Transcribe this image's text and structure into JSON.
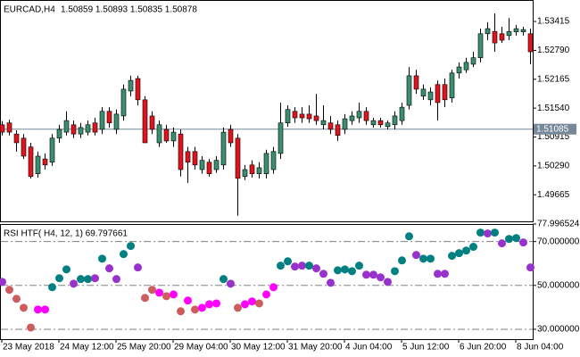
{
  "chart_data": [
    {
      "type": "candlestick",
      "title": "EURCAD,H4",
      "subtitle": "1.50859 1.50893 1.50835 1.50878",
      "categories": [
        "23 May 2018",
        null,
        null,
        null,
        null,
        null,
        null,
        null,
        "24 May 12:00",
        null,
        null,
        null,
        null,
        null,
        null,
        null,
        "25 May 20:00",
        null,
        null,
        null,
        null,
        null,
        null,
        null,
        "29 May 04:00",
        null,
        null,
        null,
        null,
        null,
        null,
        null,
        "30 May 12:00",
        null,
        null,
        null,
        null,
        null,
        null,
        null,
        "31 May 20:00",
        null,
        null,
        null,
        null,
        null,
        null,
        null,
        "4 Jun 04:00",
        null,
        null,
        null,
        null,
        null,
        null,
        null,
        "5 Jun 12:00",
        null,
        null,
        null,
        null,
        null,
        null,
        null,
        "6 Jun 20:00",
        null,
        null,
        null,
        null,
        null,
        null,
        null,
        "8 Jun 04:00",
        null,
        null
      ],
      "open": [
        1.5118,
        1.5122,
        1.5098,
        1.5089,
        1.507,
        1.5012,
        1.5044,
        1.5037,
        1.5089,
        1.5102,
        1.5118,
        1.5098,
        1.5102,
        1.5122,
        1.5108,
        1.5147,
        1.5108,
        1.5137,
        1.5191,
        1.5218,
        1.5172,
        1.5137,
        1.5079,
        1.5108,
        1.5083,
        1.5098,
        1.506,
        1.506,
        1.5021,
        1.5037,
        1.5021,
        1.5031,
        1.5108,
        1.5089,
        1.5006,
        1.5031,
        1.5012,
        1.5012,
        1.5021,
        1.5056,
        1.5122,
        1.5147,
        1.5141,
        1.5141,
        1.5137,
        1.5118,
        1.5122,
        1.5118,
        1.5108,
        1.5127,
        1.5133,
        1.5147,
        1.5118,
        1.5127,
        1.5114,
        1.5118,
        1.5127,
        1.516,
        1.5224,
        1.518,
        1.5172,
        1.5205,
        1.5205,
        1.5176,
        1.523,
        1.5237,
        1.5249,
        1.5263,
        1.5315,
        1.532,
        1.5315,
        1.5311,
        1.5319,
        1.5319,
        1.5315
      ],
      "high": [
        1.5126,
        1.5129,
        1.5106,
        1.5098,
        1.5079,
        1.506,
        1.5056,
        1.5098,
        1.5118,
        1.5147,
        1.5127,
        1.5122,
        1.5127,
        1.5133,
        1.5156,
        1.5156,
        1.5151,
        1.5205,
        1.5224,
        1.5224,
        1.518,
        1.5147,
        1.5127,
        1.5118,
        1.5112,
        1.5108,
        1.507,
        1.507,
        1.505,
        1.5044,
        1.505,
        1.5112,
        1.5118,
        1.5098,
        1.5031,
        1.5041,
        1.5037,
        1.5064,
        1.507,
        1.5166,
        1.516,
        1.5156,
        1.5156,
        1.516,
        1.5185,
        1.516,
        1.5137,
        1.5127,
        1.5141,
        1.5147,
        1.5166,
        1.5156,
        1.5133,
        1.5133,
        1.5127,
        1.5147,
        1.5166,
        1.5243,
        1.5237,
        1.5205,
        1.5199,
        1.5214,
        1.5218,
        1.5237,
        1.5253,
        1.5263,
        1.5276,
        1.5326,
        1.534,
        1.5359,
        1.533,
        1.5349,
        1.5334,
        1.533,
        1.5326
      ],
      "low": [
        1.5095,
        1.5095,
        1.506,
        1.5044,
        1.5002,
        1.5004,
        1.5021,
        1.5029,
        1.5079,
        1.5095,
        1.5089,
        1.5089,
        1.5095,
        1.5095,
        1.5098,
        1.5112,
        1.5098,
        1.5127,
        1.518,
        1.516,
        1.5079,
        1.5098,
        1.507,
        1.5079,
        1.507,
        1.5006,
        1.4992,
        1.5021,
        1.5012,
        1.5006,
        1.5014,
        1.5021,
        1.507,
        1.4921,
        1.4998,
        1.5004,
        1.5002,
        1.5002,
        1.5012,
        1.5044,
        1.5114,
        1.5122,
        1.5122,
        1.5122,
        1.5118,
        1.5108,
        1.5098,
        1.5083,
        1.5098,
        1.5118,
        1.5122,
        1.5118,
        1.5112,
        1.5112,
        1.5108,
        1.5108,
        1.5118,
        1.5151,
        1.5185,
        1.5172,
        1.516,
        1.5127,
        1.5156,
        1.5166,
        1.5218,
        1.523,
        1.5243,
        1.5253,
        1.5301,
        1.5276,
        1.5295,
        1.5301,
        1.5311,
        1.5311,
        1.5249
      ],
      "close": [
        1.5102,
        1.5102,
        1.5079,
        1.505,
        1.5006,
        1.505,
        1.5031,
        1.5089,
        1.5108,
        1.5127,
        1.5098,
        1.5112,
        1.5118,
        1.5102,
        1.5147,
        1.5122,
        1.5141,
        1.5195,
        1.5214,
        1.5172,
        1.5079,
        1.5108,
        1.5118,
        1.5083,
        1.5102,
        1.5021,
        1.5037,
        1.5031,
        1.5041,
        1.5012,
        1.5041,
        1.5102,
        1.5079,
        1.5002,
        1.5021,
        1.5012,
        1.5025,
        1.5056,
        1.506,
        1.5122,
        1.5151,
        1.5133,
        1.5133,
        1.5131,
        1.5127,
        1.5127,
        1.5108,
        1.5095,
        1.5131,
        1.5137,
        1.5147,
        1.5127,
        1.5127,
        1.5118,
        1.5122,
        1.5137,
        1.5156,
        1.5224,
        1.5195,
        1.5195,
        1.5189,
        1.5166,
        1.5172,
        1.523,
        1.5243,
        1.5253,
        1.5263,
        1.5315,
        1.5326,
        1.5295,
        1.5301,
        1.532,
        1.5326,
        1.5324,
        1.5276
      ],
      "up_color": "#3b8f6e",
      "down_color": "#e0141e",
      "wick_color": "#000000",
      "ylim": [
        1.4909,
        1.5388
      ],
      "yticks": [
        1.53415,
        {
          "value": 1.5279,
          "label": "1.52790"
        },
        1.52165,
        {
          "value": 1.5154,
          "label": "1.51540"
        },
        1.50915,
        {
          "value": 1.5029,
          "label": "1.50290"
        },
        1.49665
      ],
      "price_line": 1.51085,
      "price_line_color": "#778899"
    },
    {
      "type": "dot",
      "title": "RSI HTF( H4, 12, 1) 69.797661",
      "values": [
        51.6,
        48.0,
        43.9,
        39.8,
        30.8,
        39.0,
        39.0,
        49.2,
        53.3,
        57.3,
        50.8,
        52.9,
        52.9,
        53.3,
        62.2,
        57.8,
        52.9,
        64.3,
        68.0,
        58.2,
        44.3,
        48.0,
        46.7,
        45.1,
        45.9,
        38.2,
        43.1,
        39.0,
        39.8,
        41.4,
        41.8,
        52.9,
        50.8,
        39.8,
        41.4,
        42.7,
        41.8,
        45.9,
        49.2,
        59.0,
        61.0,
        58.6,
        59.0,
        59.0,
        57.8,
        55.3,
        51.2,
        56.9,
        57.3,
        56.5,
        59.0,
        54.9,
        54.9,
        53.7,
        51.6,
        56.5,
        61.4,
        72.4,
        63.9,
        62.2,
        62.2,
        55.3,
        55.3,
        63.5,
        64.7,
        65.9,
        67.6,
        74.1,
        73.7,
        74.1,
        69.2,
        71.2,
        71.6,
        69.6,
        58.2
      ],
      "colors": [
        "#9932cc",
        "#cd5c5c",
        "#cd5c5c",
        "#cd5c5c",
        "#cd5c5c",
        "#ff00ff",
        "#ff00ff",
        "#008080",
        "#008080",
        "#008080",
        "#9932cc",
        "#008080",
        "#008080",
        "#9932cc",
        "#008080",
        "#9932cc",
        "#9932cc",
        "#008080",
        "#008080",
        "#9932cc",
        "#cd5c5c",
        "#cd5c5c",
        "#ff00ff",
        "#cd5c5c",
        "#ff00ff",
        "#cd5c5c",
        "#ff00ff",
        "#cd5c5c",
        "#ff00ff",
        "#ff00ff",
        "#ff00ff",
        "#008080",
        "#9932cc",
        "#cd5c5c",
        "#ff00ff",
        "#ff00ff",
        "#cd5c5c",
        "#ff00ff",
        "#ff00ff",
        "#008080",
        "#008080",
        "#9932cc",
        "#9932cc",
        "#008080",
        "#9932cc",
        "#9932cc",
        "#9932cc",
        "#008080",
        "#008080",
        "#008080",
        "#008080",
        "#9932cc",
        "#9932cc",
        "#9932cc",
        "#9932cc",
        "#008080",
        "#008080",
        "#008080",
        "#9932cc",
        "#008080",
        "#008080",
        "#9932cc",
        "#9932cc",
        "#008080",
        "#008080",
        "#008080",
        "#008080",
        "#008080",
        "#9932cc",
        "#008080",
        "#9932cc",
        "#008080",
        "#008080",
        "#9932cc",
        "#9932cc"
      ],
      "ylim": [
        25.5,
        78.0
      ],
      "yticks": [
        {
          "value": 77.996524,
          "label": "77.996524"
        },
        {
          "value": 70,
          "label": "70.000000"
        },
        {
          "value": 50,
          "label": "50.000000"
        },
        {
          "value": 30,
          "label": "30.000000"
        }
      ],
      "levels": [
        70,
        50,
        30
      ],
      "level_color": "#808080"
    }
  ]
}
